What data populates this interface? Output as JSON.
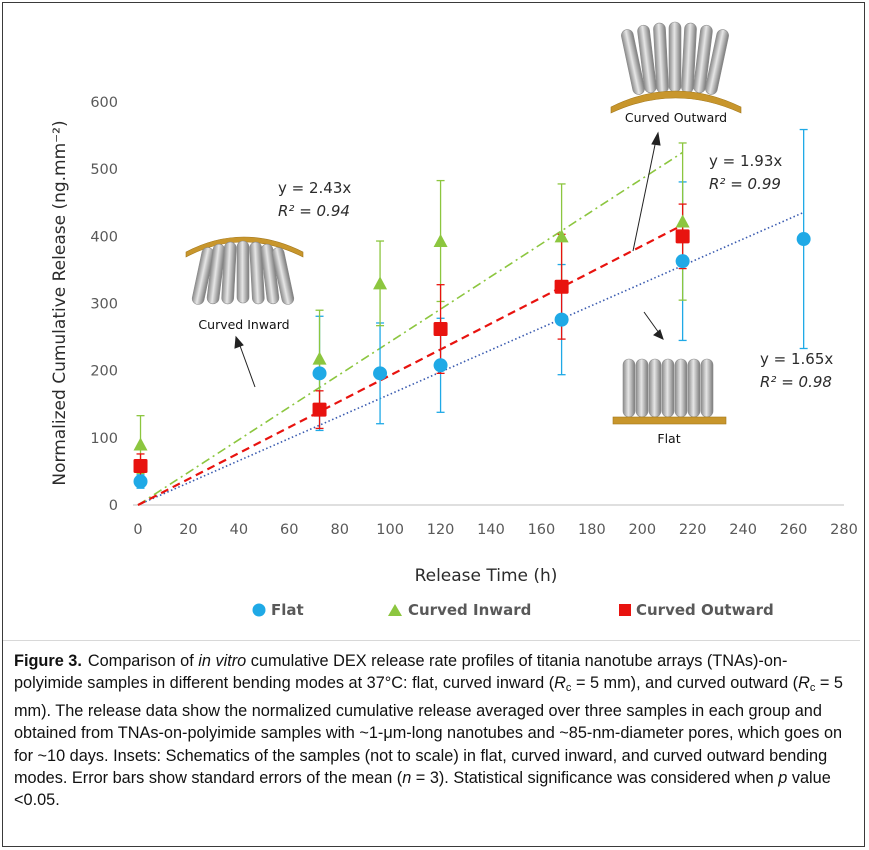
{
  "chart_data": {
    "type": "scatter",
    "xlabel": "Release Time (h)",
    "ylabel": "Normalized Cumulative Release (ng.mm⁻²)",
    "xlim": [
      0,
      280
    ],
    "ylim": [
      0,
      600
    ],
    "x_ticks": [
      "0",
      "20",
      "40",
      "60",
      "80",
      "100",
      "120",
      "140",
      "160",
      "180",
      "200",
      "220",
      "240",
      "260",
      "280"
    ],
    "y_ticks": [
      "0",
      "100",
      "200",
      "300",
      "400",
      "500",
      "600"
    ],
    "grid": false,
    "legend_position": "bottom",
    "series": [
      {
        "name": "Flat",
        "marker": "circle",
        "color": "#1fa9e6",
        "x": [
          1,
          72,
          96,
          120,
          168,
          216,
          264
        ],
        "y": [
          35,
          196,
          196,
          208,
          276,
          363,
          396
        ],
        "yerr": [
          10,
          85,
          75,
          70,
          82,
          118,
          163
        ],
        "trend": {
          "equation": "y = 1.65x",
          "r2_label": "R² = 0.98",
          "slope": 1.65,
          "x_end": 264,
          "color": "#3a5bb0",
          "style": "dotted"
        }
      },
      {
        "name": "Curved Inward",
        "marker": "triangle",
        "color": "#8cc63f",
        "x": [
          1,
          72,
          96,
          120,
          168,
          216
        ],
        "y": [
          90,
          218,
          330,
          393,
          400,
          422
        ],
        "yerr": [
          43,
          72,
          63,
          90,
          78,
          117
        ],
        "trend": {
          "equation": "y = 2.43x",
          "r2_label": "R² = 0.94",
          "slope": 2.43,
          "x_end": 216,
          "color": "#8cc63f",
          "style": "dashdot"
        }
      },
      {
        "name": "Curved Outward",
        "marker": "square",
        "color": "#e8130f",
        "x": [
          1,
          72,
          120,
          168,
          216
        ],
        "y": [
          58,
          142,
          262,
          325,
          400
        ],
        "yerr": [
          18,
          28,
          66,
          78,
          48
        ],
        "trend": {
          "equation": "y = 1.93x",
          "r2_label": "R² = 0.99",
          "slope": 1.93,
          "x_end": 216,
          "color": "#e8130f",
          "style": "dashed"
        }
      }
    ],
    "annotations": [
      "Curved Outward",
      "Curved Inward",
      "Flat"
    ]
  },
  "caption": {
    "label": "Figure 3.",
    "t1": "Comparison of ",
    "t2": "in vitro",
    "t3": " cumulative DEX release rate profiles of titania nanotube arrays (TNAs)-on-polyimide samples in different bending modes at 37°C: flat, curved inward (",
    "t4": "R",
    "t5": "c",
    "t6": " = 5 mm), and curved outward (",
    "t7": "R",
    "t8": "c",
    "t9": " = 5 mm). The release data show the normalized cumulative release averaged over three samples in each group and obtained from TNAs-on-polyimide samples with ~1-μm-long nanotubes and ~85-nm-diameter pores, which goes on for ~10 days. Insets: Schematics of the samples (not to scale) in flat, curved inward, and curved outward bending modes. Error bars show standard errors of the mean (",
    "t10": "n",
    "t11": " = 3). Statistical significance was considered when ",
    "t12": "p",
    "t13": " value <0.05."
  }
}
